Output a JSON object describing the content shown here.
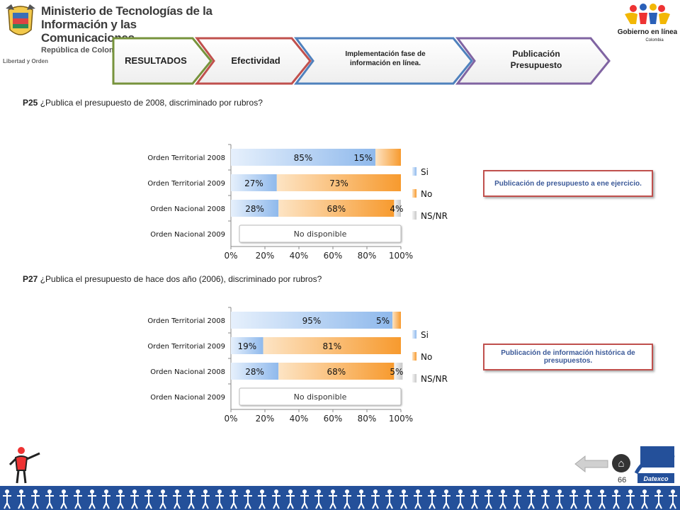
{
  "header": {
    "ministry_line1": "Ministerio de Tecnologías de la",
    "ministry_line2": "Información y las Comunicaciones",
    "ministry_line3": "República de Colombia",
    "motto": "Libertad y Orden",
    "gov_logo_text": "Gobierno en línea",
    "gov_logo_sub": "Colombia"
  },
  "tabs": [
    {
      "label": "RESULTADOS",
      "color": "#77933c"
    },
    {
      "label": "Efectividad",
      "color": "#c0504d"
    },
    {
      "label": "Implementación fase de información en línea.",
      "color": "#4f81bd"
    },
    {
      "label": "Publicación Presupuesto",
      "color": "#8064a2"
    }
  ],
  "questions": {
    "q1_code": "P25",
    "q1_text": " ¿Publica el presupuesto de 2008, discriminado por rubros?",
    "q2_code": "P27",
    "q2_text": " ¿Publica el presupuesto de hace dos año (2006), discriminado por rubros?"
  },
  "callouts": {
    "c1": "Publicación de presupuesto a ene ejercicio.",
    "c2": "Publicación de información histórica de presupuestos."
  },
  "colors": {
    "si": "#8fb9ec",
    "no": "#f79a2e",
    "nsnr": "#c8c8c8",
    "callout_border": "#c0504d",
    "callout_text": "#3b5998",
    "footer": "#24509a"
  },
  "chart_data": [
    {
      "type": "bar",
      "orientation": "horizontal",
      "stacked": true,
      "categories": [
        "Orden Territorial 2008",
        "Orden Territorial 2009",
        "Orden Nacional 2008",
        "Orden Nacional 2009"
      ],
      "series": [
        {
          "name": "Si",
          "values": [
            85,
            27,
            28,
            null
          ],
          "labels": [
            "85%",
            "27%",
            "28%",
            ""
          ]
        },
        {
          "name": "No",
          "values": [
            15,
            73,
            68,
            null
          ],
          "labels": [
            "15%",
            "73%",
            "68%",
            ""
          ]
        },
        {
          "name": "NS/NR",
          "values": [
            0,
            0,
            4,
            null
          ],
          "labels": [
            "",
            "",
            "4%",
            ""
          ]
        }
      ],
      "unavailable_label": "No disponible",
      "xticks": [
        "0%",
        "20%",
        "40%",
        "60%",
        "80%",
        "100%"
      ],
      "xlim": [
        0,
        100
      ],
      "legend_position": "right"
    },
    {
      "type": "bar",
      "orientation": "horizontal",
      "stacked": true,
      "categories": [
        "Orden Territorial 2008",
        "Orden Territorial 2009",
        "Orden Nacional 2008",
        "Orden Nacional 2009"
      ],
      "series": [
        {
          "name": "Si",
          "values": [
            95,
            19,
            28,
            null
          ],
          "labels": [
            "95%",
            "19%",
            "28%",
            ""
          ]
        },
        {
          "name": "No",
          "values": [
            5,
            81,
            68,
            null
          ],
          "labels": [
            "5%",
            "81%",
            "68%",
            ""
          ]
        },
        {
          "name": "NS/NR",
          "values": [
            0,
            0,
            5,
            null
          ],
          "labels": [
            "",
            "",
            "5%",
            ""
          ]
        }
      ],
      "unavailable_label": "No disponible",
      "xticks": [
        "0%",
        "20%",
        "40%",
        "60%",
        "80%",
        "100%"
      ],
      "xlim": [
        0,
        100
      ],
      "legend_position": "right"
    }
  ],
  "footer": {
    "page_number": "66",
    "brand": "Datexco"
  }
}
